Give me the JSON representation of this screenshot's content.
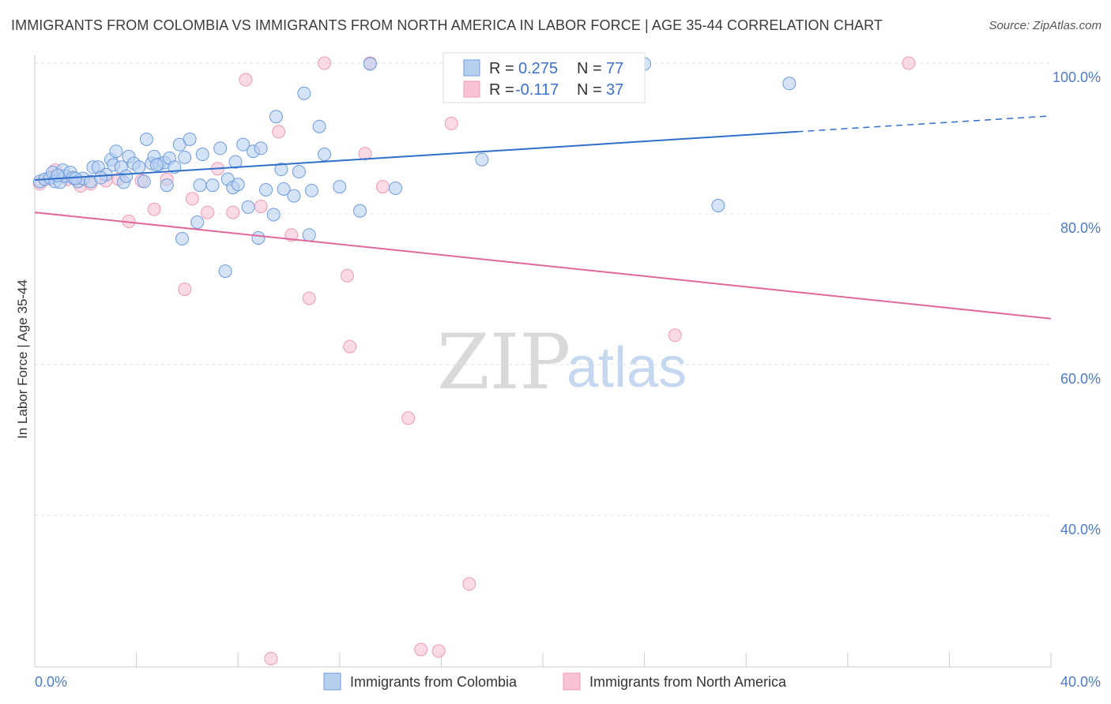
{
  "title": "IMMIGRANTS FROM COLOMBIA VS IMMIGRANTS FROM NORTH AMERICA IN LABOR FORCE | AGE 35-44 CORRELATION CHART",
  "source": "Source: ZipAtlas.com",
  "watermark": {
    "zip": "ZIP",
    "atlas": "atlas"
  },
  "colors": {
    "colombia_fill": "#b8d0f0",
    "colombia_stroke": "#6f9bdc",
    "colombia_line": "#2f6fca",
    "na_fill": "#f7c3d3",
    "na_stroke": "#ee9ab4",
    "na_line": "#e0689a",
    "axis_tick": "#4f7bc8"
  },
  "legend_top": {
    "rows": [
      {
        "r_label": "R = ",
        "r_value": "0.275",
        "n_label": "N = ",
        "n_value": "77"
      },
      {
        "r_label": "R = ",
        "r_value": "-0.117",
        "n_label": "N = ",
        "n_value": "37"
      }
    ]
  },
  "legend_bottom": [
    "Immigrants from Colombia",
    "Immigrants from North America"
  ],
  "chart_data": {
    "type": "scatter",
    "title": "IMMIGRANTS FROM COLOMBIA VS IMMIGRANTS FROM NORTH AMERICA IN LABOR FORCE | AGE 35-44 CORRELATION CHART",
    "xlabel": "",
    "ylabel": "In Labor Force | Age 35-44",
    "xlim": [
      0,
      40
    ],
    "ylim": [
      20,
      102
    ],
    "x_tick_labels": [
      "0.0%",
      "40.0%"
    ],
    "y_ticks": [
      100,
      80,
      60,
      40
    ],
    "y_tick_labels": [
      "100.0%",
      "80.0%",
      "60.0%",
      "40.0%"
    ],
    "grid": true,
    "legend_position": "top-center",
    "series": [
      {
        "name": "Immigrants from Colombia",
        "R": 0.275,
        "N": 77,
        "trend": {
          "x0": 0,
          "y0": 84.5,
          "x1": 30,
          "y1": 90.9,
          "dashed_to_x": 40,
          "dashed_to_y": 93.0
        },
        "points": [
          [
            0.2,
            84.3
          ],
          [
            0.4,
            84.6
          ],
          [
            0.6,
            84.8
          ],
          [
            0.7,
            85.5
          ],
          [
            0.8,
            84.3
          ],
          [
            1.0,
            84.2
          ],
          [
            1.1,
            85.8
          ],
          [
            1.2,
            85.0
          ],
          [
            1.4,
            85.5
          ],
          [
            1.5,
            84.8
          ],
          [
            1.7,
            84.3
          ],
          [
            1.9,
            84.7
          ],
          [
            2.2,
            84.3
          ],
          [
            2.3,
            86.2
          ],
          [
            2.5,
            86.2
          ],
          [
            2.8,
            85.2
          ],
          [
            3.0,
            87.2
          ],
          [
            3.1,
            86.5
          ],
          [
            3.2,
            88.3
          ],
          [
            3.4,
            86.2
          ],
          [
            3.5,
            84.2
          ],
          [
            3.7,
            87.6
          ],
          [
            3.9,
            86.7
          ],
          [
            4.1,
            86.2
          ],
          [
            4.3,
            84.3
          ],
          [
            4.4,
            89.9
          ],
          [
            4.6,
            86.7
          ],
          [
            4.7,
            87.6
          ],
          [
            4.9,
            86.6
          ],
          [
            5.1,
            86.8
          ],
          [
            5.2,
            83.8
          ],
          [
            5.3,
            87.4
          ],
          [
            5.5,
            86.2
          ],
          [
            5.7,
            89.2
          ],
          [
            5.8,
            76.7
          ],
          [
            5.9,
            87.5
          ],
          [
            6.1,
            89.9
          ],
          [
            6.4,
            78.9
          ],
          [
            6.5,
            83.8
          ],
          [
            6.6,
            87.9
          ],
          [
            7.0,
            83.8
          ],
          [
            7.3,
            88.7
          ],
          [
            7.6,
            84.6
          ],
          [
            7.8,
            83.5
          ],
          [
            7.9,
            86.9
          ],
          [
            8.0,
            83.9
          ],
          [
            8.2,
            89.2
          ],
          [
            8.4,
            80.9
          ],
          [
            8.6,
            88.3
          ],
          [
            8.8,
            76.8
          ],
          [
            8.9,
            88.7
          ],
          [
            9.1,
            83.2
          ],
          [
            9.4,
            79.9
          ],
          [
            9.5,
            92.9
          ],
          [
            9.7,
            85.9
          ],
          [
            9.8,
            83.3
          ],
          [
            10.2,
            82.4
          ],
          [
            10.4,
            85.6
          ],
          [
            10.6,
            96.0
          ],
          [
            10.8,
            77.2
          ],
          [
            10.9,
            83.1
          ],
          [
            11.2,
            91.6
          ],
          [
            11.4,
            87.9
          ],
          [
            12.0,
            83.6
          ],
          [
            12.8,
            80.4
          ],
          [
            13.2,
            99.9
          ],
          [
            14.2,
            83.4
          ],
          [
            17.6,
            87.2
          ],
          [
            24.0,
            99.9
          ],
          [
            29.7,
            97.3
          ],
          [
            26.9,
            81.1
          ],
          [
            7.5,
            72.4
          ],
          [
            2.6,
            84.8
          ],
          [
            3.6,
            85.0
          ],
          [
            4.8,
            86.5
          ],
          [
            1.6,
            84.7
          ],
          [
            0.9,
            85.1
          ]
        ]
      },
      {
        "name": "Immigrants from North America",
        "R": -0.117,
        "N": 37,
        "trend": {
          "x0": 0,
          "y0": 80.2,
          "x1": 40,
          "y1": 66.1
        },
        "points": [
          [
            0.2,
            84.0
          ],
          [
            0.6,
            84.7
          ],
          [
            0.8,
            85.8
          ],
          [
            1.3,
            84.6
          ],
          [
            1.8,
            83.7
          ],
          [
            2.2,
            84.0
          ],
          [
            2.8,
            84.4
          ],
          [
            3.3,
            84.6
          ],
          [
            3.7,
            79.0
          ],
          [
            4.2,
            84.4
          ],
          [
            4.7,
            80.6
          ],
          [
            5.2,
            84.6
          ],
          [
            5.9,
            70.0
          ],
          [
            6.2,
            82.0
          ],
          [
            6.8,
            80.2
          ],
          [
            7.2,
            86.0
          ],
          [
            7.8,
            80.2
          ],
          [
            8.3,
            97.8
          ],
          [
            8.9,
            81.0
          ],
          [
            9.3,
            21.0
          ],
          [
            9.6,
            90.9
          ],
          [
            10.1,
            77.2
          ],
          [
            10.8,
            68.8
          ],
          [
            11.4,
            100.0
          ],
          [
            12.3,
            71.8
          ],
          [
            12.4,
            62.4
          ],
          [
            13.0,
            88.0
          ],
          [
            13.2,
            100.0
          ],
          [
            13.7,
            83.6
          ],
          [
            14.7,
            52.9
          ],
          [
            15.2,
            22.2
          ],
          [
            15.9,
            22.0
          ],
          [
            16.4,
            92.0
          ],
          [
            17.1,
            30.9
          ],
          [
            20.9,
            100.0
          ],
          [
            25.2,
            63.9
          ],
          [
            34.4,
            100.0
          ]
        ]
      }
    ]
  }
}
